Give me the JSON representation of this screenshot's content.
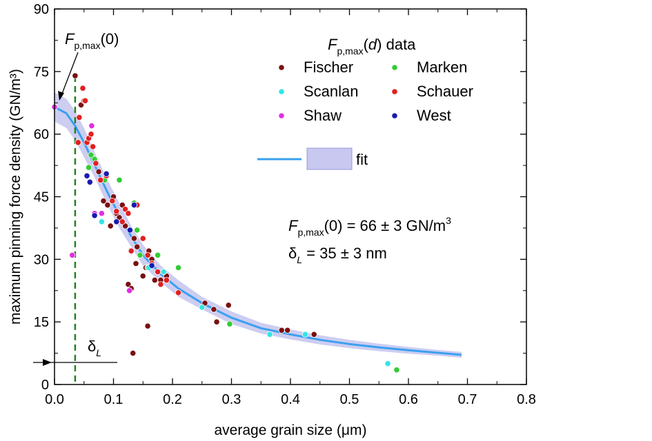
{
  "chart_data": {
    "type": "scatter",
    "xlabel": "average grain size (μm)",
    "ylabel": "maximum pinning force density (GN/m³)",
    "xlim": [
      0.0,
      0.8
    ],
    "ylim": [
      0,
      90
    ],
    "x_ticks": [
      "0.0",
      "0.1",
      "0.2",
      "0.3",
      "0.4",
      "0.5",
      "0.6",
      "0.7",
      "0.8"
    ],
    "y_ticks": [
      "0",
      "15",
      "30",
      "45",
      "60",
      "75",
      "90"
    ],
    "grid": false,
    "legend_title": {
      "symbol": "F",
      "sub": "p,max",
      "paren": "(d)",
      "tail": " data"
    },
    "legend_position": "top-right",
    "series": [
      {
        "name": "Fischer",
        "color": "#7a1010",
        "points": [
          [
            0.035,
            74
          ],
          [
            0.045,
            67
          ],
          [
            0.075,
            51
          ],
          [
            0.083,
            44
          ],
          [
            0.09,
            43
          ],
          [
            0.095,
            38
          ],
          [
            0.1,
            45
          ],
          [
            0.105,
            41
          ],
          [
            0.11,
            40
          ],
          [
            0.115,
            43
          ],
          [
            0.12,
            38
          ],
          [
            0.125,
            24
          ],
          [
            0.13,
            23
          ],
          [
            0.135,
            35
          ],
          [
            0.138,
            29
          ],
          [
            0.14,
            33
          ],
          [
            0.145,
            31
          ],
          [
            0.15,
            26
          ],
          [
            0.155,
            28
          ],
          [
            0.158,
            14
          ],
          [
            0.16,
            32
          ],
          [
            0.165,
            30
          ],
          [
            0.17,
            25
          ],
          [
            0.18,
            25
          ],
          [
            0.19,
            26
          ],
          [
            0.255,
            19.5
          ],
          [
            0.27,
            18
          ],
          [
            0.275,
            15
          ],
          [
            0.295,
            19
          ],
          [
            0.385,
            13
          ],
          [
            0.395,
            13
          ],
          [
            0.44,
            12
          ],
          [
            0.133,
            7.5
          ]
        ]
      },
      {
        "name": "Marken",
        "color": "#33cc33",
        "points": [
          [
            0.058,
            52
          ],
          [
            0.062,
            55
          ],
          [
            0.068,
            54
          ],
          [
            0.085,
            49
          ],
          [
            0.11,
            49
          ],
          [
            0.135,
            43.5
          ],
          [
            0.14,
            37
          ],
          [
            0.145,
            31
          ],
          [
            0.158,
            28
          ],
          [
            0.175,
            31
          ],
          [
            0.185,
            27
          ],
          [
            0.21,
            28
          ],
          [
            0.297,
            14.5
          ],
          [
            0.58,
            3.5
          ]
        ]
      },
      {
        "name": "Scanlan",
        "color": "#33e5e5",
        "points": [
          [
            0.08,
            39
          ],
          [
            0.16,
            28
          ],
          [
            0.185,
            27
          ],
          [
            0.25,
            18.5
          ],
          [
            0.365,
            12
          ],
          [
            0.425,
            12
          ],
          [
            0.565,
            5
          ]
        ]
      },
      {
        "name": "Schauer",
        "color": "#e02020",
        "points": [
          [
            0.042,
            64
          ],
          [
            0.048,
            71
          ],
          [
            0.05,
            68
          ],
          [
            0.052,
            68
          ],
          [
            0.055,
            58
          ],
          [
            0.058,
            59
          ],
          [
            0.062,
            60
          ],
          [
            0.065,
            57
          ],
          [
            0.07,
            53
          ],
          [
            0.078,
            49
          ],
          [
            0.088,
            50
          ],
          [
            0.098,
            44
          ],
          [
            0.105,
            41.5
          ],
          [
            0.115,
            39
          ],
          [
            0.12,
            42
          ],
          [
            0.125,
            41
          ],
          [
            0.13,
            32
          ],
          [
            0.14,
            43
          ],
          [
            0.15,
            35
          ],
          [
            0.158,
            31
          ],
          [
            0.165,
            29
          ],
          [
            0.175,
            27
          ],
          [
            0.18,
            24
          ],
          [
            0.19,
            25
          ],
          [
            0.21,
            22
          ],
          [
            0.04,
            58
          ]
        ]
      },
      {
        "name": "Shaw",
        "color": "#e030e0",
        "points": [
          [
            0.0,
            66.5
          ],
          [
            0.063,
            62
          ],
          [
            0.068,
            41
          ],
          [
            0.08,
            41
          ],
          [
            0.127,
            22.5
          ],
          [
            0.03,
            31
          ]
        ]
      },
      {
        "name": "West",
        "color": "#1a1ab0",
        "points": [
          [
            0.055,
            50
          ],
          [
            0.06,
            48.5
          ],
          [
            0.068,
            40.5
          ],
          [
            0.088,
            50.5
          ],
          [
            0.105,
            39
          ],
          [
            0.128,
            37
          ],
          [
            0.135,
            43
          ],
          [
            0.165,
            28.5
          ]
        ]
      }
    ],
    "fit": {
      "name": "fit",
      "color": "#3aa0f0",
      "band_color": "#c8c8f0",
      "x": [
        0.0,
        0.02,
        0.035,
        0.05,
        0.07,
        0.09,
        0.11,
        0.13,
        0.15,
        0.18,
        0.21,
        0.25,
        0.3,
        0.35,
        0.4,
        0.45,
        0.5,
        0.55,
        0.6,
        0.65,
        0.69
      ],
      "y": [
        66.5,
        65.0,
        62.0,
        58.0,
        52.0,
        46.0,
        40.5,
        35.5,
        31.0,
        26.5,
        23.0,
        19.5,
        16.0,
        13.5,
        12.0,
        10.7,
        9.7,
        8.9,
        8.2,
        7.6,
        7.1
      ],
      "band_upper": [
        70.0,
        68.5,
        65.5,
        61.5,
        55.0,
        49.0,
        43.5,
        38.0,
        33.5,
        28.5,
        25.0,
        21.0,
        17.5,
        14.8,
        13.2,
        11.8,
        10.7,
        9.8,
        9.0,
        8.3,
        7.8
      ],
      "band_lower": [
        63.0,
        61.5,
        58.5,
        54.5,
        49.0,
        43.0,
        37.5,
        33.0,
        28.5,
        24.5,
        21.0,
        18.0,
        14.5,
        12.2,
        10.8,
        9.6,
        8.7,
        8.0,
        7.4,
        6.9,
        6.4
      ]
    },
    "vertical_dashed_line": {
      "x": 0.035,
      "color": "#208020"
    },
    "annotations": {
      "fp0_label": {
        "symbol": "F",
        "sub": "p,max",
        "tail": "(0)"
      },
      "result_line1": {
        "symbol": "F",
        "sub": "p,max",
        "tail": "(0) = 66 ± 3 GN/m",
        "sup": "3"
      },
      "result_line2": {
        "symbol": "δ",
        "sub": "L",
        "tail": " = 35 ± 3 nm"
      },
      "delta_label": {
        "symbol": "δ",
        "sub": "L"
      }
    }
  }
}
